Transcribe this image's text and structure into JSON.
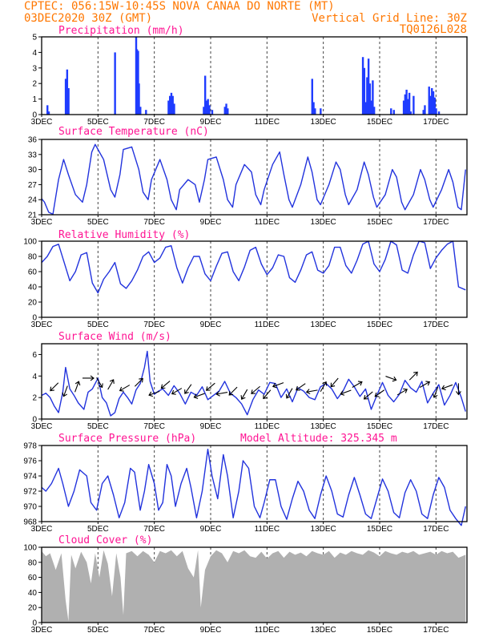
{
  "header": {
    "line1_left": "CPTEC:   056:15W-10:45S  NOVA CANAA DO NORTE (MT)",
    "line2_left": "03DEC2020 30Z (GMT)",
    "line2_right": "Vertical Grid Line: 30Z",
    "line3_right": "TQ0126L028"
  },
  "colors": {
    "header": "#ff7700",
    "panel_title": "#ff1493",
    "series_line": "#2233dd",
    "precip_bar": "#1f3cff",
    "cloud_fill": "#b0b0b0",
    "wind_arrow": "#000000"
  },
  "x_axis": {
    "tick_labels": [
      "3DEC",
      "5DEC",
      "7DEC",
      "9DEC",
      "11DEC",
      "13DEC",
      "15DEC",
      "17DEC"
    ],
    "tick_days": [
      3,
      5,
      7,
      9,
      11,
      13,
      15,
      17
    ],
    "start_day": 3,
    "end_day": 18.1
  },
  "chart_data": [
    {
      "type": "bar",
      "title": "Precipitation (mm/h)",
      "ylim": [
        0,
        5
      ],
      "yticks": [
        0,
        1,
        2,
        3,
        4,
        5
      ],
      "x_day": [
        3.2,
        3.25,
        3.85,
        3.9,
        3.95,
        5.6,
        6.35,
        6.38,
        6.42,
        6.45,
        6.5,
        6.7,
        7.5,
        7.55,
        7.6,
        7.65,
        7.7,
        8.75,
        8.8,
        8.85,
        8.9,
        8.95,
        9.05,
        9.5,
        9.55,
        9.6,
        12.6,
        12.65,
        12.7,
        12.9,
        14.4,
        14.45,
        14.5,
        14.55,
        14.6,
        14.65,
        14.7,
        14.75,
        14.8,
        15.4,
        15.5,
        15.85,
        15.9,
        15.95,
        16.0,
        16.05,
        16.1,
        16.2,
        16.55,
        16.6,
        16.75,
        16.8,
        16.85,
        16.9,
        16.95,
        17.0,
        17.1
      ],
      "values": [
        0.6,
        0.2,
        2.3,
        2.9,
        1.7,
        4.0,
        5.0,
        4.2,
        4.1,
        2.0,
        0.5,
        0.3,
        0.9,
        1.2,
        1.4,
        1.2,
        0.7,
        0.5,
        2.5,
        0.9,
        1.0,
        0.6,
        0.3,
        0.5,
        0.7,
        0.4,
        2.3,
        0.8,
        0.4,
        0.4,
        3.7,
        3.0,
        0.8,
        2.4,
        3.6,
        2.0,
        0.9,
        2.2,
        0.5,
        0.4,
        0.3,
        0.9,
        1.3,
        1.6,
        1.0,
        1.4,
        0.2,
        1.2,
        0.3,
        0.6,
        1.8,
        1.2,
        1.7,
        1.5,
        1.1,
        0.4,
        0.2
      ]
    },
    {
      "type": "line",
      "title": "Surface Temperature (nC)",
      "ylim": [
        21,
        36
      ],
      "yticks": [
        21,
        24,
        27,
        30,
        33,
        36
      ],
      "x_day": [
        3.0,
        3.1,
        3.25,
        3.4,
        3.6,
        3.78,
        3.95,
        4.2,
        4.45,
        4.6,
        4.78,
        4.9,
        5.2,
        5.45,
        5.6,
        5.78,
        5.9,
        6.2,
        6.45,
        6.6,
        6.78,
        6.9,
        7.2,
        7.45,
        7.6,
        7.78,
        7.9,
        8.2,
        8.45,
        8.6,
        8.78,
        8.9,
        9.2,
        9.45,
        9.6,
        9.78,
        9.9,
        10.2,
        10.45,
        10.6,
        10.78,
        10.9,
        11.2,
        11.45,
        11.6,
        11.78,
        11.9,
        12.2,
        12.45,
        12.6,
        12.78,
        12.9,
        13.2,
        13.45,
        13.6,
        13.78,
        13.9,
        14.2,
        14.45,
        14.6,
        14.78,
        14.9,
        15.2,
        15.45,
        15.6,
        15.78,
        15.9,
        16.2,
        16.45,
        16.6,
        16.78,
        16.9,
        17.2,
        17.45,
        17.6,
        17.78,
        17.9,
        18.05
      ],
      "values": [
        24.2,
        23.5,
        21.5,
        21.1,
        28.0,
        32.0,
        29.0,
        25.0,
        23.5,
        27.0,
        33.5,
        35.0,
        32.0,
        26.0,
        24.5,
        29.0,
        34.0,
        34.5,
        30.0,
        25.5,
        24.0,
        28.0,
        32.0,
        28.0,
        24.0,
        22.0,
        26.0,
        28.0,
        27.0,
        23.5,
        28.0,
        32.0,
        32.5,
        28.0,
        24.0,
        22.5,
        27.0,
        31.0,
        29.5,
        25.0,
        23.0,
        26.0,
        31.0,
        33.5,
        29.0,
        24.0,
        22.5,
        27.0,
        32.5,
        29.5,
        24.0,
        23.0,
        27.0,
        31.5,
        30.0,
        25.0,
        23.0,
        26.0,
        31.5,
        29.0,
        24.5,
        22.5,
        25.0,
        30.0,
        28.5,
        23.5,
        22.0,
        25.0,
        30.0,
        28.0,
        24.0,
        22.5,
        26.0,
        30.0,
        27.5,
        22.5,
        22.0,
        30.0
      ]
    },
    {
      "type": "line",
      "title": "Relative Humidity (%)",
      "ylim": [
        0,
        100
      ],
      "yticks": [
        0,
        20,
        40,
        60,
        80,
        100
      ],
      "x_day": [
        3.0,
        3.2,
        3.4,
        3.6,
        3.8,
        4.0,
        4.2,
        4.4,
        4.6,
        4.8,
        5.0,
        5.2,
        5.4,
        5.6,
        5.8,
        6.0,
        6.2,
        6.4,
        6.6,
        6.8,
        7.0,
        7.2,
        7.4,
        7.6,
        7.8,
        8.0,
        8.2,
        8.4,
        8.6,
        8.8,
        9.0,
        9.2,
        9.4,
        9.6,
        9.8,
        10.0,
        10.2,
        10.4,
        10.6,
        10.8,
        11.0,
        11.2,
        11.4,
        11.6,
        11.8,
        12.0,
        12.2,
        12.4,
        12.6,
        12.8,
        13.0,
        13.2,
        13.4,
        13.6,
        13.8,
        14.0,
        14.2,
        14.4,
        14.6,
        14.8,
        15.0,
        15.2,
        15.4,
        15.6,
        15.8,
        16.0,
        16.2,
        16.4,
        16.6,
        16.8,
        17.0,
        17.2,
        17.4,
        17.6,
        17.8,
        18.05
      ],
      "values": [
        72,
        80,
        93,
        96,
        72,
        48,
        60,
        82,
        85,
        45,
        32,
        50,
        60,
        72,
        44,
        38,
        48,
        62,
        80,
        86,
        72,
        78,
        92,
        94,
        65,
        45,
        65,
        80,
        80,
        57,
        48,
        67,
        84,
        86,
        60,
        48,
        66,
        88,
        92,
        70,
        56,
        65,
        82,
        80,
        52,
        46,
        62,
        82,
        86,
        62,
        58,
        68,
        92,
        92,
        68,
        58,
        75,
        96,
        100,
        70,
        60,
        76,
        100,
        95,
        62,
        58,
        82,
        100,
        98,
        64,
        78,
        88,
        96,
        100,
        40,
        36
      ]
    },
    {
      "type": "line",
      "title": "Surface Wind (m/s)",
      "ylim": [
        0,
        7
      ],
      "yticks": [
        0,
        2,
        4,
        6
      ],
      "x_day": [
        3.0,
        3.15,
        3.3,
        3.45,
        3.6,
        3.75,
        3.85,
        4.0,
        4.15,
        4.3,
        4.5,
        4.65,
        4.8,
        5.0,
        5.15,
        5.3,
        5.45,
        5.6,
        5.75,
        5.9,
        6.05,
        6.2,
        6.35,
        6.5,
        6.65,
        6.75,
        6.85,
        7.0,
        7.15,
        7.3,
        7.5,
        7.7,
        7.9,
        8.1,
        8.3,
        8.5,
        8.7,
        8.9,
        9.1,
        9.3,
        9.5,
        9.7,
        9.9,
        10.1,
        10.3,
        10.5,
        10.7,
        10.9,
        11.1,
        11.3,
        11.5,
        11.7,
        11.9,
        12.1,
        12.3,
        12.5,
        12.7,
        12.9,
        13.1,
        13.3,
        13.5,
        13.7,
        13.9,
        14.1,
        14.3,
        14.5,
        14.7,
        14.9,
        15.1,
        15.3,
        15.5,
        15.7,
        15.9,
        16.1,
        16.3,
        16.5,
        16.7,
        16.9,
        17.1,
        17.3,
        17.5,
        17.7,
        17.9,
        18.05
      ],
      "values": [
        2.2,
        2.4,
        2.0,
        1.2,
        0.6,
        2.5,
        4.8,
        2.8,
        2.2,
        1.5,
        0.9,
        2.5,
        2.8,
        3.8,
        2.0,
        1.5,
        0.3,
        0.6,
        1.9,
        2.5,
        2.0,
        1.4,
        2.7,
        3.3,
        4.8,
        6.3,
        3.5,
        2.3,
        2.6,
        2.8,
        2.2,
        3.1,
        2.4,
        1.4,
        2.5,
        2.2,
        3.0,
        1.8,
        2.2,
        2.6,
        3.5,
        2.4,
        2.0,
        1.4,
        0.4,
        1.8,
        2.7,
        2.3,
        3.4,
        3.3,
        2.0,
        2.8,
        1.6,
        2.9,
        2.6,
        2.0,
        1.8,
        3.0,
        3.3,
        2.8,
        1.9,
        2.6,
        3.7,
        3.0,
        2.1,
        2.8,
        0.9,
        2.2,
        3.4,
        2.2,
        1.6,
        2.3,
        3.6,
        2.9,
        2.5,
        3.5,
        1.5,
        2.4,
        3.2,
        1.3,
        2.2,
        3.4,
        2.0,
        0.7
      ]
    },
    {
      "type": "line",
      "title": "Surface Pressure (hPa)",
      "annotation": "Model Altitude: 325.345 m",
      "ylim": [
        968,
        978
      ],
      "yticks": [
        968,
        970,
        972,
        974,
        976,
        978
      ],
      "x_day": [
        3.0,
        3.15,
        3.35,
        3.6,
        3.75,
        3.95,
        4.15,
        4.35,
        4.6,
        4.75,
        4.95,
        5.15,
        5.35,
        5.55,
        5.75,
        5.95,
        6.15,
        6.3,
        6.5,
        6.65,
        6.8,
        7.0,
        7.15,
        7.3,
        7.45,
        7.6,
        7.75,
        7.95,
        8.15,
        8.3,
        8.5,
        8.7,
        8.9,
        9.05,
        9.25,
        9.45,
        9.6,
        9.8,
        10.0,
        10.15,
        10.35,
        10.55,
        10.75,
        10.9,
        11.1,
        11.3,
        11.5,
        11.7,
        11.9,
        12.1,
        12.3,
        12.5,
        12.7,
        12.9,
        13.1,
        13.3,
        13.5,
        13.7,
        13.9,
        14.1,
        14.3,
        14.5,
        14.7,
        14.9,
        15.1,
        15.3,
        15.5,
        15.7,
        15.9,
        16.1,
        16.3,
        16.5,
        16.7,
        16.9,
        17.1,
        17.3,
        17.5,
        17.7,
        17.9,
        18.05
      ],
      "values": [
        972.5,
        972.0,
        973.0,
        975.0,
        973.0,
        970.0,
        972.0,
        974.8,
        974.0,
        970.5,
        969.5,
        973.0,
        974.0,
        971.5,
        968.5,
        970.5,
        975.0,
        974.5,
        969.5,
        972.0,
        975.5,
        973.0,
        969.5,
        970.5,
        975.5,
        974.0,
        970.0,
        973.0,
        975.0,
        972.5,
        968.5,
        972.0,
        977.5,
        974.0,
        971.0,
        976.8,
        974.0,
        968.5,
        972.0,
        976.0,
        975.0,
        970.0,
        968.5,
        970.5,
        973.5,
        973.5,
        970.0,
        968.3,
        971.0,
        973.3,
        972.0,
        969.5,
        968.4,
        971.5,
        974.0,
        972.0,
        969.0,
        968.6,
        971.5,
        973.8,
        971.5,
        969.0,
        968.4,
        971.0,
        973.6,
        972.0,
        969.2,
        968.5,
        971.8,
        973.5,
        972.0,
        969.0,
        968.4,
        971.5,
        973.8,
        972.5,
        969.5,
        968.4,
        967.5,
        970.0
      ]
    },
    {
      "type": "area",
      "title": "Cloud Cover (%)",
      "ylim": [
        0,
        100
      ],
      "yticks": [
        0,
        20,
        40,
        60,
        80,
        100
      ],
      "x_day": [
        3.0,
        3.15,
        3.3,
        3.5,
        3.7,
        3.85,
        3.95,
        4.05,
        4.2,
        4.4,
        4.6,
        4.75,
        4.9,
        5.05,
        5.2,
        5.35,
        5.5,
        5.65,
        5.8,
        5.9,
        6.0,
        6.2,
        6.4,
        6.6,
        6.8,
        7.0,
        7.2,
        7.4,
        7.6,
        7.8,
        8.0,
        8.2,
        8.4,
        8.55,
        8.65,
        8.8,
        9.0,
        9.2,
        9.4,
        9.6,
        9.8,
        10.0,
        10.2,
        10.4,
        10.6,
        10.8,
        11.0,
        11.2,
        11.4,
        11.6,
        11.8,
        12.0,
        12.2,
        12.4,
        12.6,
        12.8,
        13.0,
        13.2,
        13.4,
        13.6,
        13.8,
        14.0,
        14.2,
        14.4,
        14.6,
        14.8,
        15.0,
        15.2,
        15.4,
        15.6,
        15.8,
        16.0,
        16.2,
        16.4,
        16.6,
        16.8,
        17.0,
        17.2,
        17.4,
        17.6,
        17.8,
        18.05
      ],
      "values": [
        95,
        88,
        92,
        70,
        92,
        30,
        2,
        90,
        72,
        94,
        80,
        52,
        92,
        60,
        96,
        78,
        35,
        92,
        60,
        10,
        92,
        95,
        88,
        95,
        90,
        80,
        95,
        92,
        96,
        88,
        95,
        72,
        60,
        96,
        20,
        70,
        88,
        96,
        92,
        80,
        95,
        92,
        96,
        88,
        86,
        94,
        85,
        92,
        95,
        86,
        94,
        90,
        93,
        88,
        95,
        92,
        90,
        95,
        86,
        93,
        90,
        95,
        92,
        90,
        96,
        93,
        88,
        95,
        92,
        90,
        94,
        92,
        95,
        90,
        92,
        94,
        90,
        95,
        92,
        94,
        86,
        90
      ]
    }
  ],
  "wind_vectors": {
    "x_day": [
      3.45,
      3.85,
      4.25,
      4.65,
      5.05,
      5.45,
      5.95,
      6.45,
      7.0,
      7.4,
      7.8,
      8.2,
      8.6,
      9.0,
      9.4,
      9.8,
      10.2,
      10.6,
      11.0,
      11.4,
      11.8,
      12.2,
      12.6,
      13.0,
      13.4,
      13.8,
      14.2,
      14.6,
      15.0,
      15.4,
      15.8,
      16.2,
      16.6,
      17.0,
      17.4,
      17.8
    ],
    "y_value": [
      3.0,
      2.6,
      3.0,
      3.8,
      3.4,
      3.2,
      2.9,
      3.4,
      2.4,
      3.2,
      2.6,
      2.8,
      2.2,
      3.0,
      2.4,
      2.6,
      2.3,
      2.7,
      2.3,
      3.2,
      2.4,
      3.0,
      2.6,
      3.0,
      3.4,
      2.5,
      3.2,
      2.2,
      2.4,
      3.8,
      2.5,
      4.0,
      3.2,
      2.5,
      3.0,
      2.8
    ],
    "dir_deg": [
      225,
      250,
      70,
      0,
      300,
      60,
      210,
      45,
      200,
      220,
      210,
      235,
      200,
      220,
      190,
      225,
      240,
      220,
      230,
      200,
      240,
      215,
      190,
      60,
      230,
      200,
      30,
      220,
      215,
      340,
      30,
      45,
      30,
      250,
      200,
      270
    ]
  }
}
